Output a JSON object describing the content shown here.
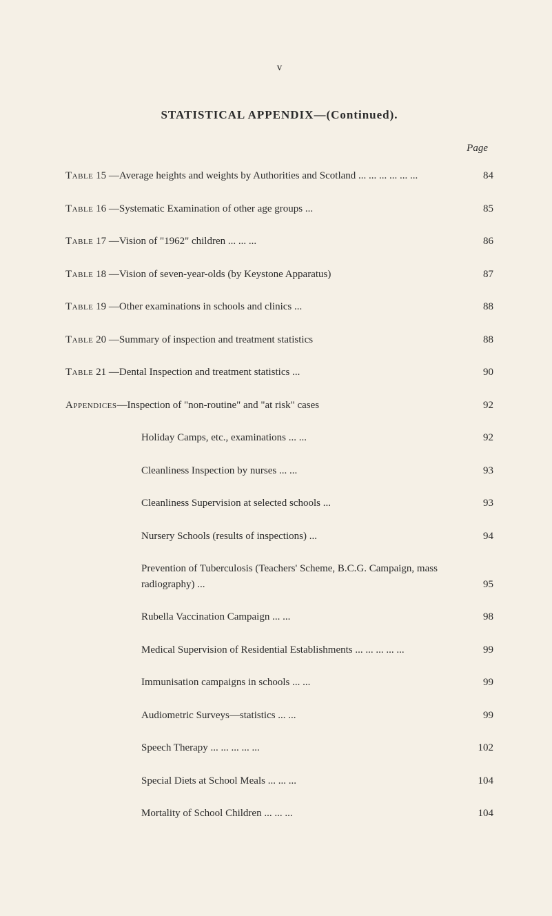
{
  "page_number": "v",
  "heading": "STATISTICAL APPENDIX—(Continued).",
  "page_label": "Page",
  "entries": [
    {
      "prefix": "Table",
      "number": "15",
      "sep": "—",
      "text": "Average heights and weights by Authorities and Scotland    ...    ...    ...    ...    ...    ...",
      "page": "84",
      "multiline": true
    },
    {
      "prefix": "Table",
      "number": "16",
      "sep": "—",
      "text": "Systematic Examination of other age groups    ...",
      "page": "85"
    },
    {
      "prefix": "Table",
      "number": "17",
      "sep": "—",
      "text": "Vision of \"1962\" children            ...    ...    ...",
      "page": "86"
    },
    {
      "prefix": "Table",
      "number": "18",
      "sep": "—",
      "text": "Vision of seven-year-olds (by Keystone Apparatus)",
      "page": "87"
    },
    {
      "prefix": "Table",
      "number": "19",
      "sep": "—",
      "text": "Other examinations in schools and clinics        ...",
      "page": "88"
    },
    {
      "prefix": "Table",
      "number": "20",
      "sep": "—",
      "text": "Summary of inspection and treatment statistics",
      "page": "88"
    },
    {
      "prefix": "Table",
      "number": "21",
      "sep": "—",
      "text": "Dental Inspection and treatment statistics        ...",
      "page": "90"
    },
    {
      "prefix": "Appendices",
      "sep": "—",
      "text": "Inspection of \"non-routine\" and \"at risk\" cases",
      "page": "92"
    },
    {
      "indent": true,
      "text": "Holiday Camps, etc., examinations      ...    ...",
      "page": "92"
    },
    {
      "indent": true,
      "text": "Cleanliness Inspection by nurses          ...    ...",
      "page": "93"
    },
    {
      "indent": true,
      "text": "Cleanliness Supervision at selected schools    ...",
      "page": "93"
    },
    {
      "indent": true,
      "text": "Nursery Schools (results of inspections)        ...",
      "page": "94"
    },
    {
      "indent": true,
      "text": "Prevention of Tuberculosis (Teachers' Scheme, B.C.G. Campaign, mass radiography)        ...",
      "page": "95",
      "multiline": true
    },
    {
      "indent": true,
      "text": "Rubella Vaccination Campaign            ...    ...",
      "page": "98"
    },
    {
      "indent": true,
      "text": "Medical Supervision of Residential Establishments ...    ...    ...    ...    ...",
      "page": "99",
      "multiline": true
    },
    {
      "indent": true,
      "text": "Immunisation campaigns in schools    ...    ...",
      "page": "99"
    },
    {
      "indent": true,
      "text": "Audiometric Surveys—statistics          ...    ...",
      "page": "99"
    },
    {
      "indent": true,
      "text": "Speech Therapy    ...    ...    ...    ...    ...",
      "page": "102"
    },
    {
      "indent": true,
      "text": "Special Diets at School Meals    ...    ...    ...",
      "page": "104"
    },
    {
      "indent": true,
      "text": "Mortality of School Children      ...    ...    ...",
      "page": "104"
    }
  ]
}
